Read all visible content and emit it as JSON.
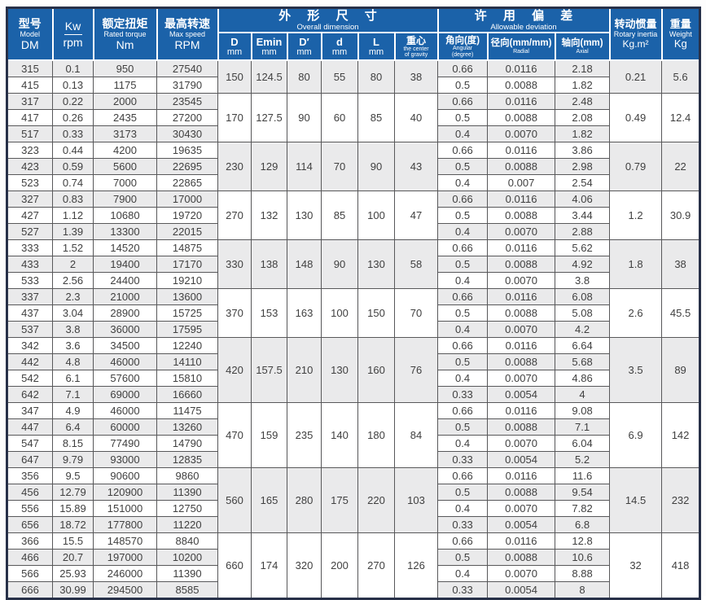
{
  "colors": {
    "header_blue": "#1b62a9",
    "row_shaded": "#eaeaeb",
    "outer_border": "#273048",
    "cell_border": "#58585a",
    "body_text": "#404040"
  },
  "table": {
    "header": {
      "model": {
        "zh": "型号",
        "en": "Model",
        "code": "DM"
      },
      "power": {
        "top": "Kw",
        "bottom": "rpm"
      },
      "torque": {
        "zh": "额定扭矩",
        "en": "Rated torque",
        "unit": "Nm"
      },
      "speed": {
        "zh": "最高转速",
        "en": "Max speed",
        "unit": "RPM"
      },
      "dims": {
        "zh": "外 形 尺 寸",
        "en": "Overall dimension"
      },
      "dim_cols": {
        "D": {
          "sym": "D",
          "unit": "mm"
        },
        "Emin": {
          "sym": "Emin",
          "unit": "mm"
        },
        "Dp": {
          "sym": "D′",
          "unit": "mm"
        },
        "d": {
          "sym": "d",
          "unit": "mm"
        },
        "L": {
          "sym": "L",
          "unit": "mm"
        },
        "cg": {
          "zh": "重心",
          "en1": "the center",
          "en2": "of gravity"
        }
      },
      "deviation": {
        "zh": "许 用 偏 差",
        "en": "Allowable deviation"
      },
      "dev_cols": {
        "angular": {
          "zh": "角向(度)",
          "en1": "Angular",
          "en2": "(degree)"
        },
        "radial": {
          "zh": "径向(mm/mm)",
          "en1": "Radial"
        },
        "axial": {
          "zh": "轴向(mm)",
          "en1": "Axial"
        }
      },
      "inertia": {
        "zh": "转动惯量",
        "en": "Rotary inertia",
        "unit": "Kg.m²"
      },
      "weight": {
        "zh": "重量",
        "en": "Weight",
        "unit": "Kg"
      }
    },
    "groups": [
      {
        "D": "150",
        "Emin": "124.5",
        "Dp": "80",
        "d": "55",
        "L": "80",
        "cg": "38",
        "inertia": "0.21",
        "weight": "5.6",
        "rows": [
          {
            "model": "315",
            "kw": "0.1",
            "torque": "950",
            "speed": "27540",
            "angular": "0.66",
            "radial": "0.0116",
            "axial": "2.18"
          },
          {
            "model": "415",
            "kw": "0.13",
            "torque": "1175",
            "speed": "31790",
            "angular": "0.5",
            "radial": "0.0088",
            "axial": "1.82"
          }
        ]
      },
      {
        "D": "170",
        "Emin": "127.5",
        "Dp": "90",
        "d": "60",
        "L": "85",
        "cg": "40",
        "inertia": "0.49",
        "weight": "12.4",
        "rows": [
          {
            "model": "317",
            "kw": "0.22",
            "torque": "2000",
            "speed": "23545",
            "angular": "0.66",
            "radial": "0.0116",
            "axial": "2.48"
          },
          {
            "model": "417",
            "kw": "0.26",
            "torque": "2435",
            "speed": "27200",
            "angular": "0.5",
            "radial": "0.0088",
            "axial": "2.08"
          },
          {
            "model": "517",
            "kw": "0.33",
            "torque": "3173",
            "speed": "30430",
            "angular": "0.4",
            "radial": "0.0070",
            "axial": "1.82"
          }
        ]
      },
      {
        "D": "230",
        "Emin": "129",
        "Dp": "114",
        "d": "70",
        "L": "90",
        "cg": "43",
        "inertia": "0.79",
        "weight": "22",
        "rows": [
          {
            "model": "323",
            "kw": "0.44",
            "torque": "4200",
            "speed": "19635",
            "angular": "0.66",
            "radial": "0.0116",
            "axial": "3.86"
          },
          {
            "model": "423",
            "kw": "0.59",
            "torque": "5600",
            "speed": "22695",
            "angular": "0.5",
            "radial": "0.0088",
            "axial": "2.98"
          },
          {
            "model": "523",
            "kw": "0.74",
            "torque": "7000",
            "speed": "22865",
            "angular": "0.4",
            "radial": "0.007",
            "axial": "2.54"
          }
        ]
      },
      {
        "D": "270",
        "Emin": "132",
        "Dp": "130",
        "d": "85",
        "L": "100",
        "cg": "47",
        "inertia": "1.2",
        "weight": "30.9",
        "rows": [
          {
            "model": "327",
            "kw": "0.83",
            "torque": "7900",
            "speed": "17000",
            "angular": "0.66",
            "radial": "0.0116",
            "axial": "4.06"
          },
          {
            "model": "427",
            "kw": "1.12",
            "torque": "10680",
            "speed": "19720",
            "angular": "0.5",
            "radial": "0.0088",
            "axial": "3.44"
          },
          {
            "model": "527",
            "kw": "1.39",
            "torque": "13300",
            "speed": "22015",
            "angular": "0.4",
            "radial": "0.0070",
            "axial": "2.88"
          }
        ]
      },
      {
        "D": "330",
        "Emin": "138",
        "Dp": "148",
        "d": "90",
        "L": "130",
        "cg": "58",
        "inertia": "1.8",
        "weight": "38",
        "rows": [
          {
            "model": "333",
            "kw": "1.52",
            "torque": "14520",
            "speed": "14875",
            "angular": "0.66",
            "radial": "0.0116",
            "axial": "5.62"
          },
          {
            "model": "433",
            "kw": "2",
            "torque": "19400",
            "speed": "17170",
            "angular": "0.5",
            "radial": "0.0088",
            "axial": "4.92"
          },
          {
            "model": "533",
            "kw": "2.56",
            "torque": "24400",
            "speed": "19210",
            "angular": "0.4",
            "radial": "0.0070",
            "axial": "3.8"
          }
        ]
      },
      {
        "D": "370",
        "Emin": "153",
        "Dp": "163",
        "d": "100",
        "L": "150",
        "cg": "70",
        "inertia": "2.6",
        "weight": "45.5",
        "rows": [
          {
            "model": "337",
            "kw": "2.3",
            "torque": "21000",
            "speed": "13600",
            "angular": "0.66",
            "radial": "0.0116",
            "axial": "6.08"
          },
          {
            "model": "437",
            "kw": "3.04",
            "torque": "28900",
            "speed": "15725",
            "angular": "0.5",
            "radial": "0.0088",
            "axial": "5.08"
          },
          {
            "model": "537",
            "kw": "3.8",
            "torque": "36000",
            "speed": "17595",
            "angular": "0.4",
            "radial": "0.0070",
            "axial": "4.2"
          }
        ]
      },
      {
        "D": "420",
        "Emin": "157.5",
        "Dp": "210",
        "d": "130",
        "L": "160",
        "cg": "76",
        "inertia": "3.5",
        "weight": "89",
        "rows": [
          {
            "model": "342",
            "kw": "3.6",
            "torque": "34500",
            "speed": "12240",
            "angular": "0.66",
            "radial": "0.0116",
            "axial": "6.64"
          },
          {
            "model": "442",
            "kw": "4.8",
            "torque": "46000",
            "speed": "14110",
            "angular": "0.5",
            "radial": "0.0088",
            "axial": "5.68"
          },
          {
            "model": "542",
            "kw": "6.1",
            "torque": "57600",
            "speed": "15810",
            "angular": "0.4",
            "radial": "0.0070",
            "axial": "4.86"
          },
          {
            "model": "642",
            "kw": "7.1",
            "torque": "69000",
            "speed": "16660",
            "angular": "0.33",
            "radial": "0.0054",
            "axial": "4"
          }
        ]
      },
      {
        "D": "470",
        "Emin": "159",
        "Dp": "235",
        "d": "140",
        "L": "180",
        "cg": "84",
        "inertia": "6.9",
        "weight": "142",
        "rows": [
          {
            "model": "347",
            "kw": "4.9",
            "torque": "46000",
            "speed": "11475",
            "angular": "0.66",
            "radial": "0.0116",
            "axial": "9.08"
          },
          {
            "model": "447",
            "kw": "6.4",
            "torque": "60000",
            "speed": "13260",
            "angular": "0.5",
            "radial": "0.0088",
            "axial": "7.1"
          },
          {
            "model": "547",
            "kw": "8.15",
            "torque": "77490",
            "speed": "14790",
            "angular": "0.4",
            "radial": "0.0070",
            "axial": "6.04"
          },
          {
            "model": "647",
            "kw": "9.79",
            "torque": "93000",
            "speed": "12835",
            "angular": "0.33",
            "radial": "0.0054",
            "axial": "5.2"
          }
        ]
      },
      {
        "D": "560",
        "Emin": "165",
        "Dp": "280",
        "d": "175",
        "L": "220",
        "cg": "103",
        "inertia": "14.5",
        "weight": "232",
        "rows": [
          {
            "model": "356",
            "kw": "9.5",
            "torque": "90600",
            "speed": "9860",
            "angular": "0.66",
            "radial": "0.0116",
            "axial": "11.6"
          },
          {
            "model": "456",
            "kw": "12.79",
            "torque": "120900",
            "speed": "11390",
            "angular": "0.5",
            "radial": "0.0088",
            "axial": "9.54"
          },
          {
            "model": "556",
            "kw": "15.89",
            "torque": "151000",
            "speed": "12750",
            "angular": "0.4",
            "radial": "0.0070",
            "axial": "7.82"
          },
          {
            "model": "656",
            "kw": "18.72",
            "torque": "177800",
            "speed": "11220",
            "angular": "0.33",
            "radial": "0.0054",
            "axial": "6.8"
          }
        ]
      },
      {
        "D": "660",
        "Emin": "174",
        "Dp": "320",
        "d": "200",
        "L": "270",
        "cg": "126",
        "inertia": "32",
        "weight": "418",
        "rows": [
          {
            "model": "366",
            "kw": "15.5",
            "torque": "148570",
            "speed": "8840",
            "angular": "0.66",
            "radial": "0.0116",
            "axial": "12.8"
          },
          {
            "model": "466",
            "kw": "20.7",
            "torque": "197000",
            "speed": "10200",
            "angular": "0.5",
            "radial": "0.0088",
            "axial": "10.6"
          },
          {
            "model": "566",
            "kw": "25.93",
            "torque": "246000",
            "speed": "11390",
            "angular": "0.4",
            "radial": "0.0070",
            "axial": "8.88"
          },
          {
            "model": "666",
            "kw": "30.99",
            "torque": "294500",
            "speed": "8585",
            "angular": "0.33",
            "radial": "0.0054",
            "axial": "8"
          }
        ]
      }
    ]
  }
}
